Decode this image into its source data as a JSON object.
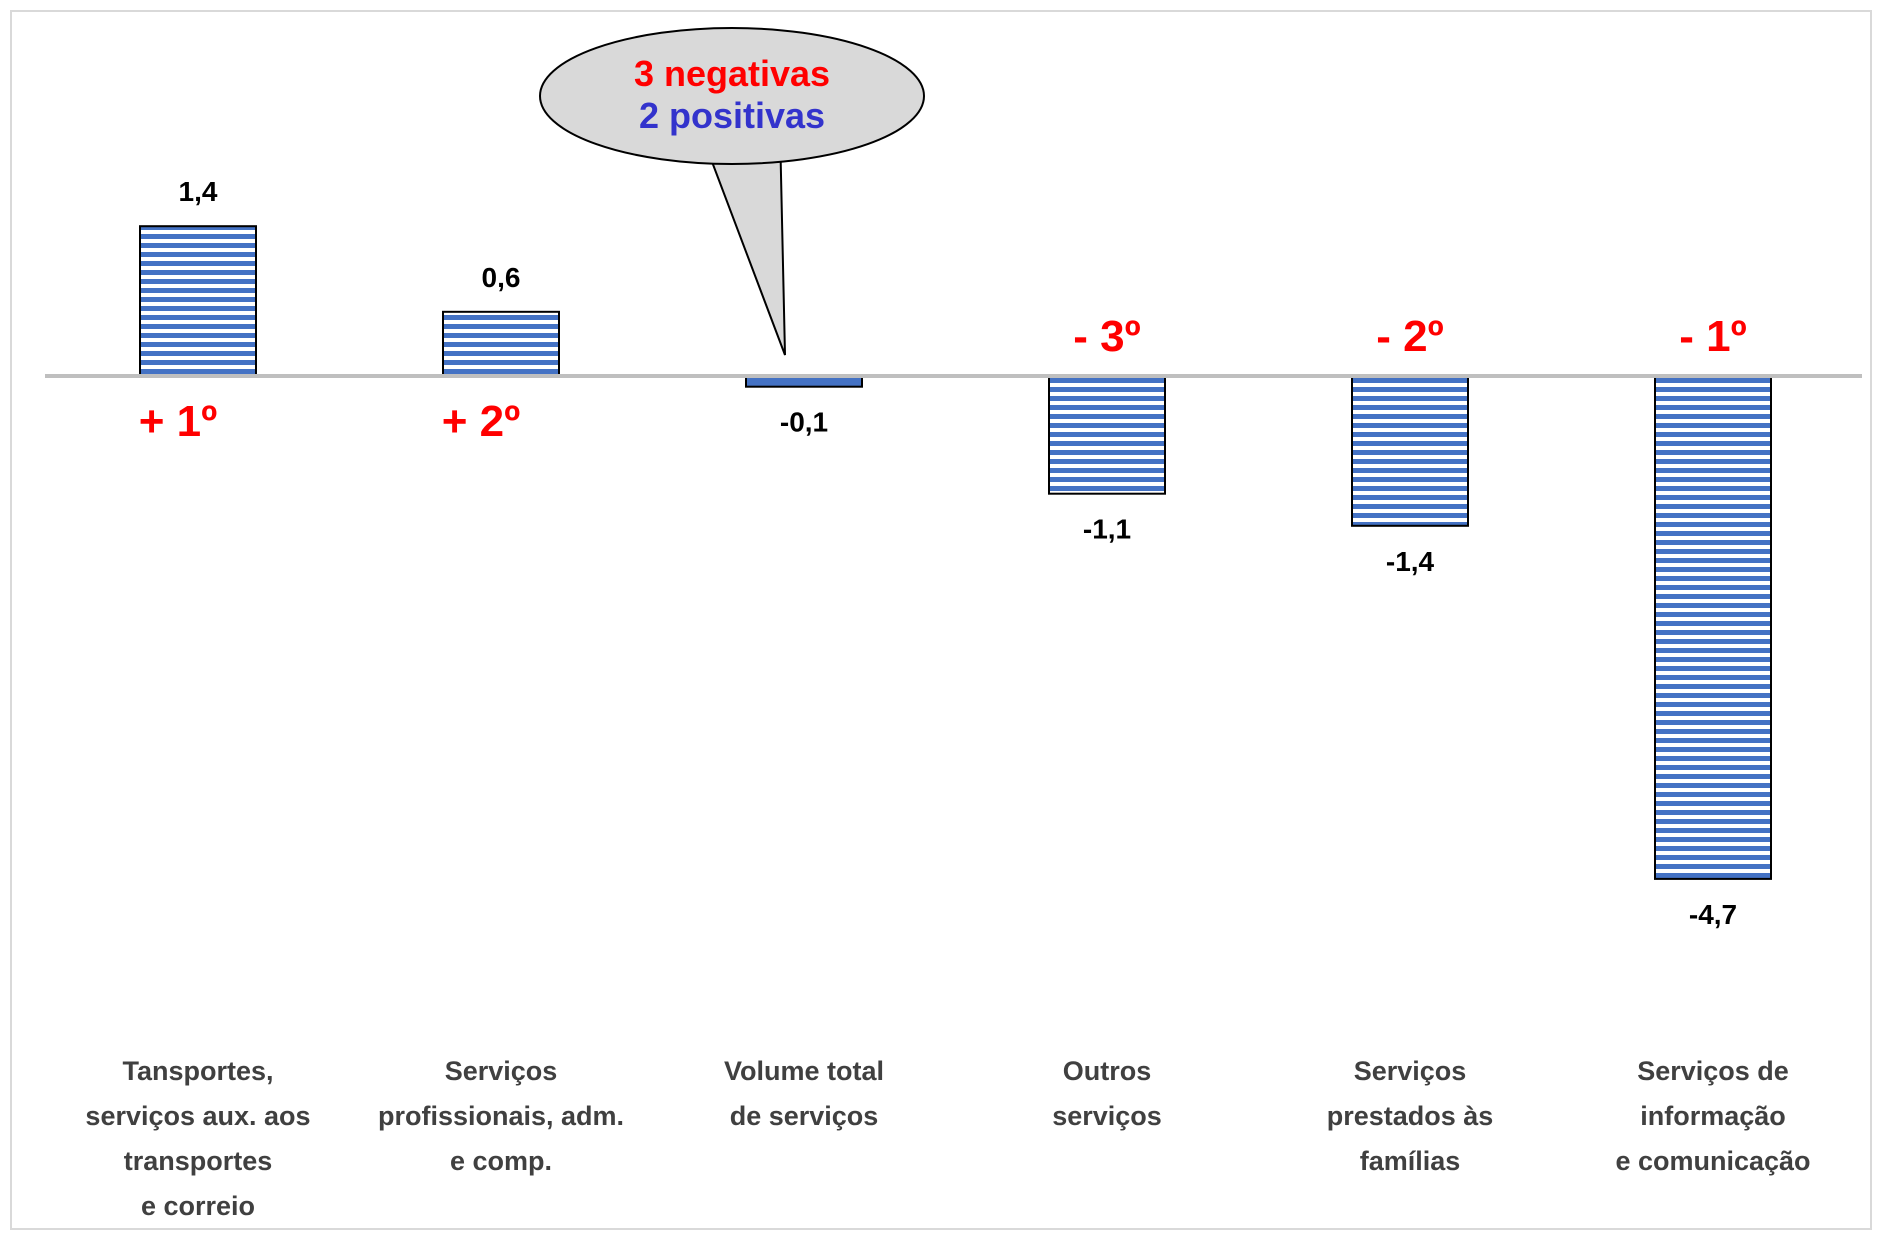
{
  "chart_data": {
    "type": "bar",
    "categories": [
      [
        "Tansportes,",
        "serviços aux. aos",
        "transportes",
        "e correio"
      ],
      [
        "Serviços",
        "profissionais, adm.",
        "e comp."
      ],
      [
        "Volume total",
        "de serviços"
      ],
      [
        "Outros",
        "serviços"
      ],
      [
        "Serviços",
        "prestados às",
        "famílias"
      ],
      [
        "Serviços de",
        "informação",
        "e comunicação"
      ]
    ],
    "values": [
      1.4,
      0.6,
      -0.1,
      -1.1,
      -1.4,
      -4.7
    ],
    "value_labels": [
      "1,4",
      "0,6",
      "-0,1",
      "-1,1",
      "-1,4",
      "-4,7"
    ],
    "rank_labels": [
      "+ 1º",
      "+ 2º",
      "",
      "- 3º",
      "- 2º",
      "- 1º"
    ],
    "highlight_index": 2,
    "callout": {
      "line1": "3 negativas",
      "line2": "2 positivas"
    },
    "ylim": [
      -5.5,
      3.3
    ],
    "title": "",
    "xlabel": "",
    "ylabel": "",
    "grid": false,
    "colors": {
      "bar_stripe": "#4472c4",
      "bar_solid": "#4472c4",
      "bar_border": "#000000",
      "zero_line": "#bfbfbf",
      "rank": "#ff0000",
      "callout_negative": "#ff0000",
      "callout_positive": "#3333cc",
      "callout_fill": "#d9d9d9"
    }
  }
}
